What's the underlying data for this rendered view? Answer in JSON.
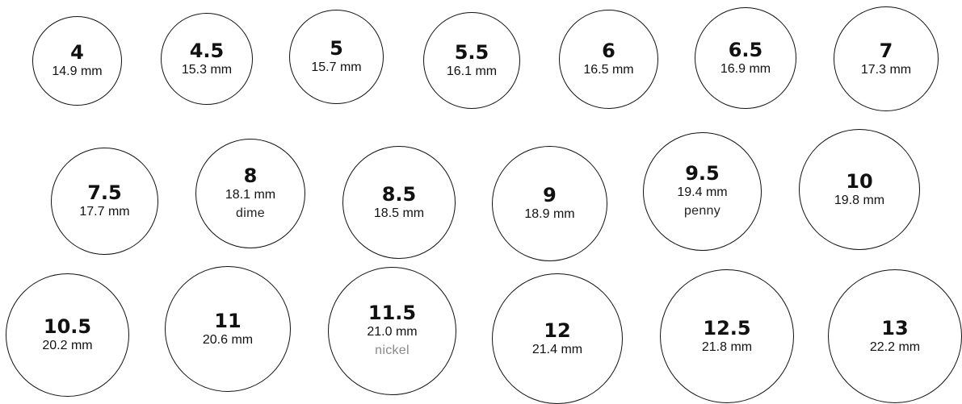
{
  "rings": [
    {
      "size": "4",
      "mm": "14.9 mm"
    },
    {
      "size": "4.5",
      "mm": "15.3 mm"
    },
    {
      "size": "5",
      "mm": "15.7 mm"
    },
    {
      "size": "5.5",
      "mm": "16.1 mm"
    },
    {
      "size": "6",
      "mm": "16.5 mm"
    },
    {
      "size": "6.5",
      "mm": "16.9 mm"
    },
    {
      "size": "7",
      "mm": "17.3 mm"
    },
    {
      "size": "7.5",
      "mm": "17.7 mm"
    },
    {
      "size": "8",
      "mm": "18.1 mm",
      "coin": "dime"
    },
    {
      "size": "8.5",
      "mm": "18.5 mm"
    },
    {
      "size": "9",
      "mm": "18.9 mm"
    },
    {
      "size": "9.5",
      "mm": "19.4 mm",
      "coin": "penny"
    },
    {
      "size": "10",
      "mm": "19.8 mm"
    },
    {
      "size": "10.5",
      "mm": "20.2 mm"
    },
    {
      "size": "11",
      "mm": "20.6 mm"
    },
    {
      "size": "11.5",
      "mm": "21.0 mm",
      "coin": "nickel"
    },
    {
      "size": "12",
      "mm": "21.4 mm"
    },
    {
      "size": "12.5",
      "mm": "21.8 mm"
    },
    {
      "size": "13",
      "mm": "22.2 mm"
    }
  ]
}
